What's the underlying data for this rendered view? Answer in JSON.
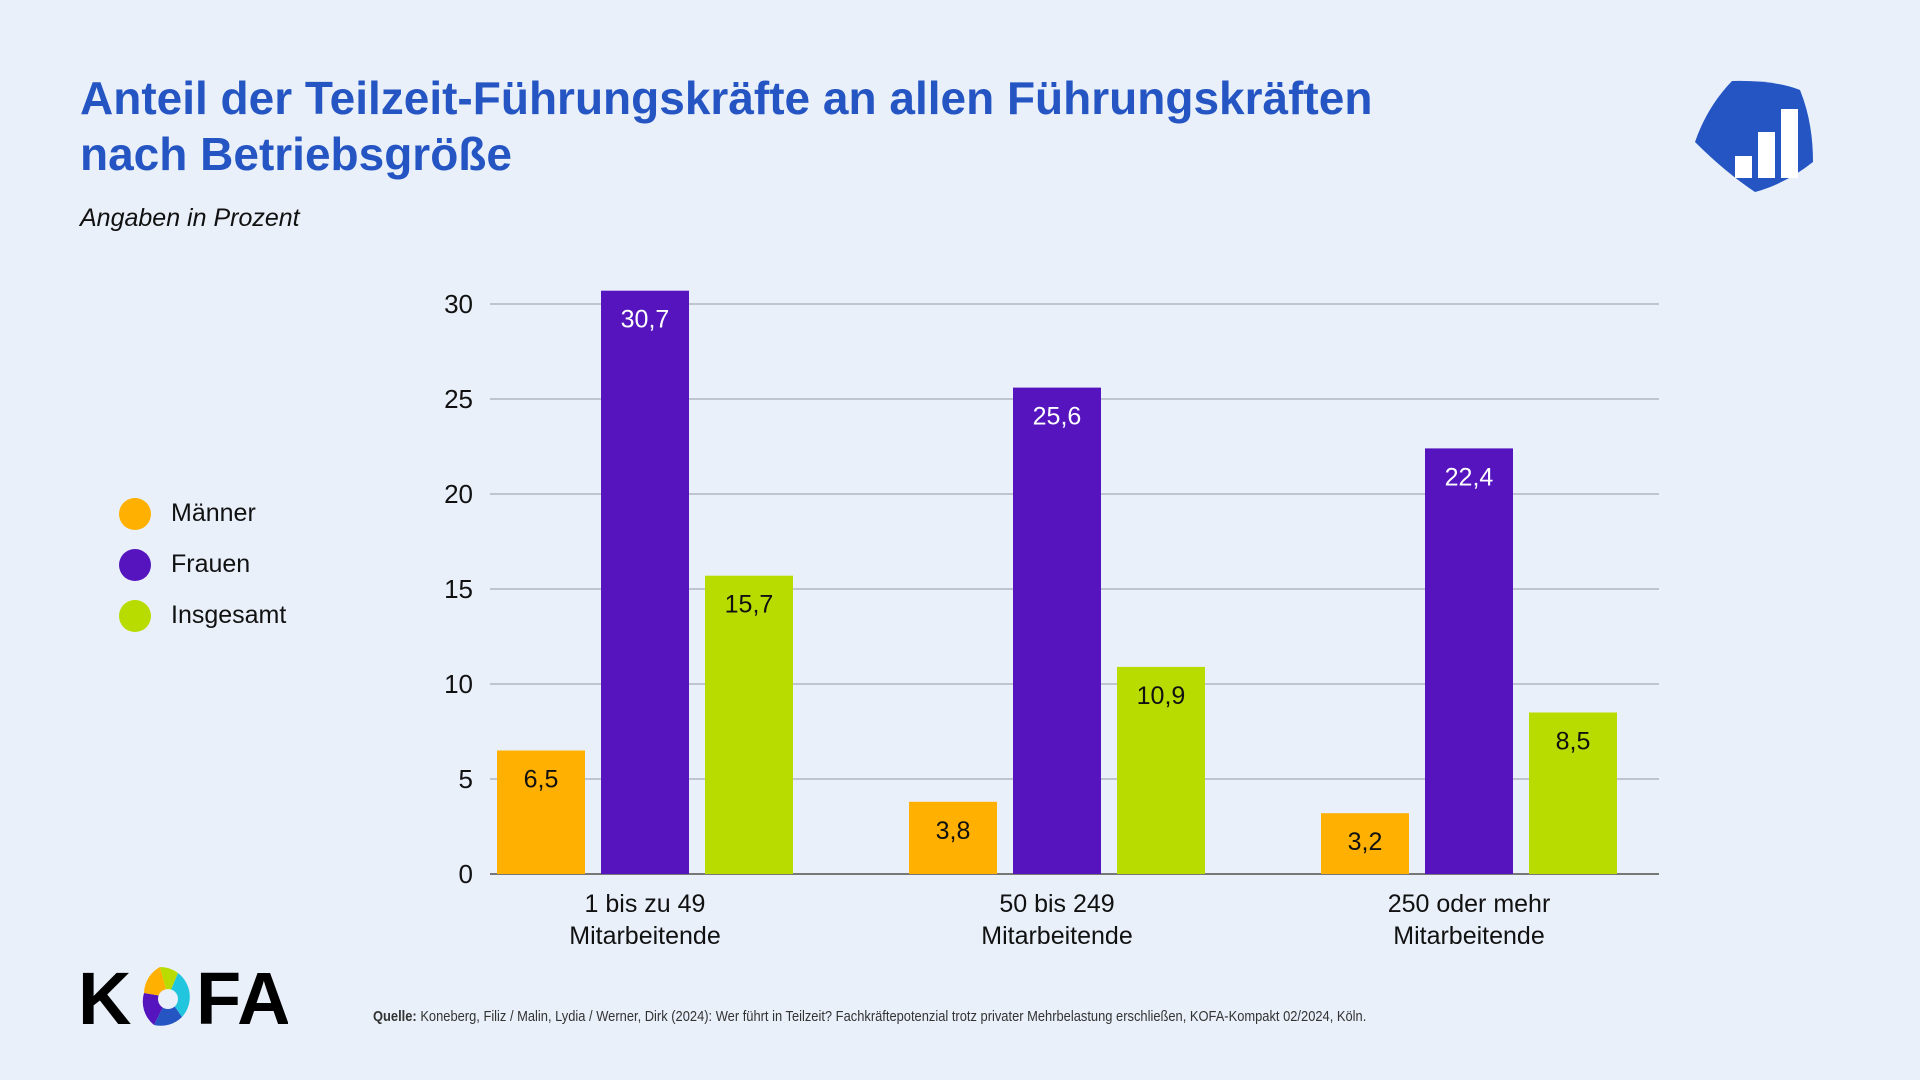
{
  "title_line1": "Anteil der Teilzeit-Führungskräfte an allen Führungskräften",
  "title_line2": "nach Betriebsgröße",
  "subtitle": "Angaben in Prozent",
  "logo_text": "KOFA",
  "source_label": "Quelle:",
  "source_text": "Koneberg, Filiz / Malin, Lydia / Werner, Dirk (2024): Wer führt in Teilzeit? Fachkräftepotenzial trotz privater Mehrbelastung erschließen, KOFA-Kompakt 02/2024, Köln.",
  "colors": {
    "background": "#e9f0fa",
    "title": "#2455c3",
    "grid": "#9a9aa8"
  },
  "chart_data": {
    "type": "bar",
    "title": "Anteil der Teilzeit-Führungskräfte an allen Führungskräften nach Betriebsgröße",
    "ylabel": "Angaben in Prozent",
    "categories": [
      [
        "1 bis zu 49",
        "Mitarbeitende"
      ],
      [
        "50 bis 249",
        "Mitarbeitende"
      ],
      [
        "250 oder mehr",
        "Mitarbeitende"
      ]
    ],
    "series": [
      {
        "name": "Männer",
        "color": "#ffb000",
        "label_color": "#111111",
        "values": [
          6.5,
          3.8,
          3.2
        ],
        "labels": [
          "6,5",
          "3,8",
          "3,2"
        ]
      },
      {
        "name": "Frauen",
        "color": "#5514bd",
        "label_color": "#ffffff",
        "values": [
          30.7,
          25.6,
          22.4
        ],
        "labels": [
          "30,7",
          "25,6",
          "22,4"
        ]
      },
      {
        "name": "Insgesamt",
        "color": "#b8dc00",
        "label_color": "#111111",
        "values": [
          15.7,
          10.9,
          8.5
        ],
        "labels": [
          "15,7",
          "10,9",
          "8,5"
        ]
      }
    ],
    "ylim": [
      0,
      30
    ],
    "yticks": [
      0,
      5,
      10,
      15,
      20,
      25,
      30
    ],
    "grid": true,
    "legend": "left"
  }
}
